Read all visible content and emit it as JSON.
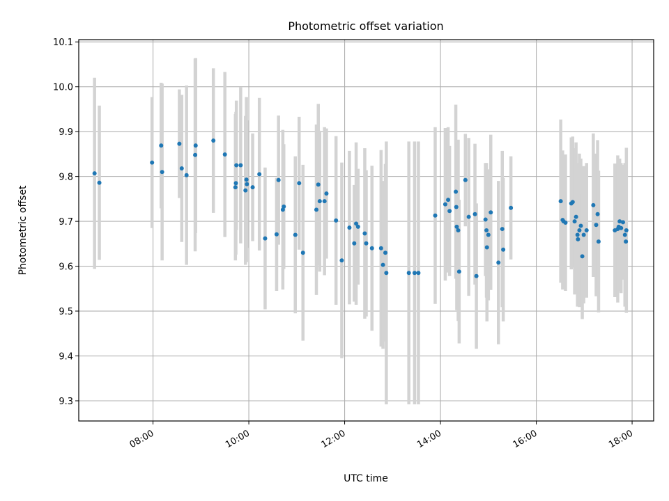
{
  "chart_data": {
    "type": "scatter",
    "title": "Photometric offset variation",
    "xlabel": "UTC time",
    "ylabel": "Photometric offset",
    "x_tick_labels": [
      "08:00",
      "10:00",
      "12:00",
      "14:00",
      "16:00",
      "18:00"
    ],
    "x_tick_hours": [
      8,
      10,
      12,
      14,
      16,
      18
    ],
    "y_tick_labels": [
      "9.3",
      "9.4",
      "9.5",
      "9.6",
      "9.7",
      "9.8",
      "9.9",
      "10.0",
      "10.1"
    ],
    "y_ticks": [
      9.3,
      9.4,
      9.5,
      9.6,
      9.7,
      9.8,
      9.9,
      10.0,
      10.1
    ],
    "xlim_hours": [
      6.45,
      18.45
    ],
    "ylim": [
      9.255,
      10.105
    ],
    "grid": true,
    "point_color": "#1f77b4",
    "errorbar_color": "#d3d3d3",
    "points_hours": [
      6.78,
      6.88,
      7.98,
      8.17,
      8.19,
      8.55,
      8.6,
      8.7,
      8.88,
      8.89,
      9.26,
      9.5,
      9.72,
      9.73,
      9.74,
      9.83,
      9.93,
      9.95,
      9.96,
      10.08,
      10.22,
      10.34,
      10.58,
      10.62,
      10.71,
      10.73,
      10.97,
      11.05,
      11.13,
      11.41,
      11.45,
      11.48,
      11.58,
      11.62,
      11.82,
      11.94,
      12.1,
      12.2,
      12.24,
      12.28,
      12.42,
      12.45,
      12.57,
      12.76,
      12.8,
      12.85,
      12.87,
      13.34,
      13.46,
      13.54,
      13.89,
      14.1,
      14.16,
      14.19,
      14.32,
      14.33,
      14.34,
      14.37,
      14.39,
      14.52,
      14.59,
      14.72,
      14.75,
      14.94,
      14.96,
      14.97,
      15.0,
      15.05,
      15.21,
      15.29,
      15.31,
      15.47,
      16.51,
      16.55,
      16.57,
      16.61,
      16.73,
      16.76,
      16.8,
      16.83,
      16.86,
      16.87,
      16.9,
      16.93,
      16.96,
      16.99,
      17.05,
      17.19,
      17.25,
      17.28,
      17.3,
      17.64,
      17.7,
      17.72,
      17.74,
      17.77,
      17.81,
      17.85,
      17.87,
      17.88
    ],
    "offsets": [
      9.807,
      9.786,
      9.831,
      9.869,
      9.81,
      9.873,
      9.818,
      9.803,
      9.848,
      9.869,
      9.88,
      9.849,
      9.776,
      9.785,
      9.825,
      9.825,
      9.769,
      9.793,
      9.783,
      9.776,
      9.805,
      9.662,
      9.671,
      9.792,
      9.726,
      9.733,
      9.67,
      9.785,
      9.63,
      9.726,
      9.782,
      9.745,
      9.745,
      9.762,
      9.702,
      9.613,
      9.686,
      9.651,
      9.695,
      9.688,
      9.673,
      9.651,
      9.64,
      9.64,
      9.603,
      9.63,
      9.585,
      9.585,
      9.585,
      9.585,
      9.713,
      9.738,
      9.748,
      9.723,
      9.766,
      9.732,
      9.688,
      9.68,
      9.588,
      9.792,
      9.71,
      9.716,
      9.578,
      9.704,
      9.68,
      9.642,
      9.67,
      9.72,
      9.608,
      9.683,
      9.637,
      9.73,
      9.745,
      9.703,
      9.7,
      9.697,
      9.74,
      9.743,
      9.7,
      9.71,
      9.67,
      9.66,
      9.68,
      9.69,
      9.622,
      9.67,
      9.68,
      9.736,
      9.692,
      9.716,
      9.655,
      9.68,
      9.683,
      9.688,
      9.7,
      9.685,
      9.698,
      9.67,
      9.655,
      9.68
    ],
    "errors": [
      0.213,
      0.172,
      0.146,
      0.14,
      0.197,
      0.121,
      0.164,
      0.2,
      0.215,
      0.195,
      0.161,
      0.184,
      0.163,
      0.159,
      0.144,
      0.174,
      0.166,
      0.184,
      0.142,
      0.12,
      0.17,
      0.158,
      0.126,
      0.144,
      0.178,
      0.139,
      0.175,
      0.148,
      0.196,
      0.19,
      0.18,
      0.157,
      0.165,
      0.145,
      0.188,
      0.218,
      0.171,
      0.13,
      0.181,
      0.129,
      0.19,
      0.163,
      0.184,
      0.219,
      0.187,
      0.198,
      0.293,
      0.293,
      0.293,
      0.293,
      0.197,
      0.17,
      0.162,
      0.145,
      0.194,
      0.137,
      0.186,
      0.202,
      0.16,
      0.103,
      0.176,
      0.157,
      0.162,
      0.126,
      0.15,
      0.165,
      0.146,
      0.173,
      0.182,
      0.174,
      0.16,
      0.115,
      0.182,
      0.155,
      0.14,
      0.152,
      0.147,
      0.146,
      0.163,
      0.166,
      0.16,
      0.146,
      0.171,
      0.15,
      0.14,
      0.153,
      0.15,
      0.16,
      0.159,
      0.165,
      0.158,
      0.149,
      0.164,
      0.144,
      0.14,
      0.145,
      0.128,
      0.16,
      0.14,
      0.184
    ]
  }
}
